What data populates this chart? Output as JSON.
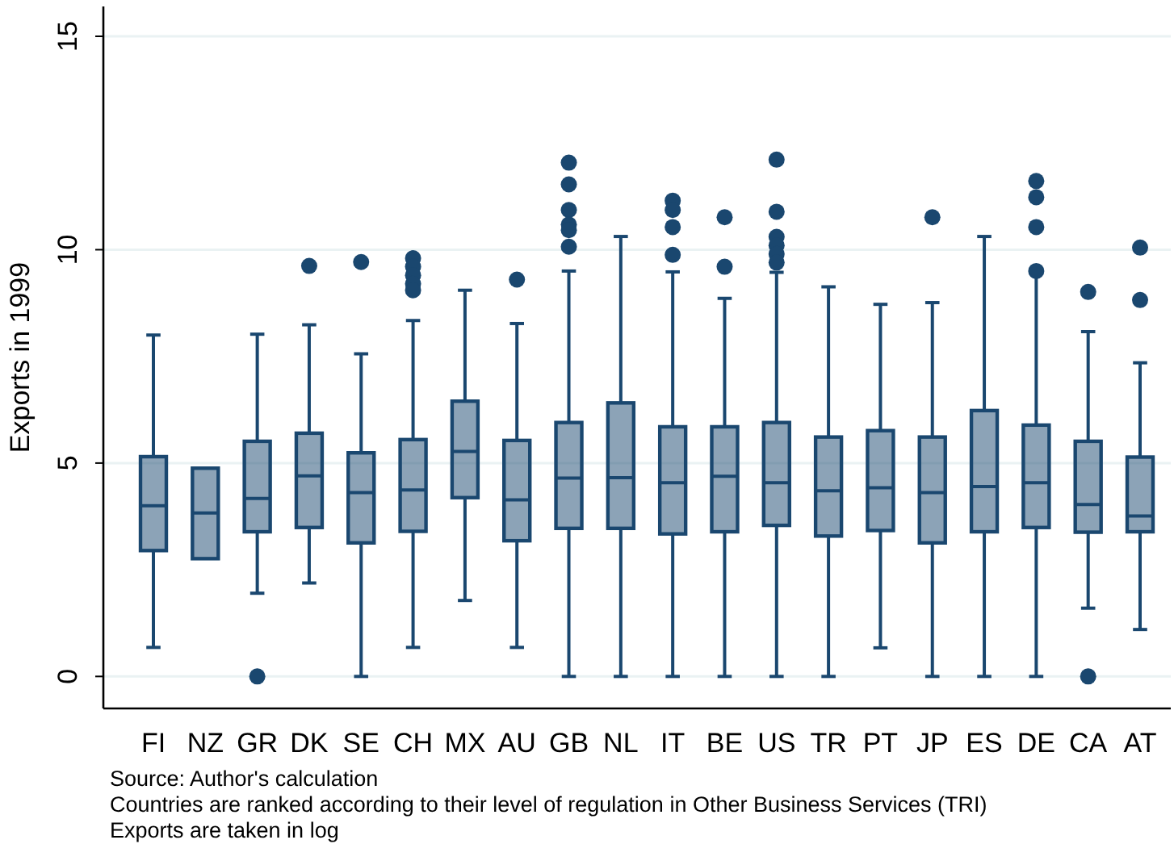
{
  "chart_data": {
    "type": "box",
    "ylabel": "Exports in 1999",
    "color": "#1a476f",
    "categories": [
      "FI",
      "NZ",
      "GR",
      "DK",
      "SE",
      "CH",
      "MX",
      "AU",
      "GB",
      "NL",
      "IT",
      "BE",
      "US",
      "TR",
      "PT",
      "JP",
      "ES",
      "DE",
      "CA",
      "AT"
    ],
    "boxes": [
      {
        "low": 0.68,
        "q1": 2.95,
        "median": 4.0,
        "q3": 5.15,
        "high": 8.0
      },
      {
        "low": 2.76,
        "q1": 2.76,
        "median": 3.83,
        "q3": 4.88,
        "high": 4.88
      },
      {
        "low": 1.95,
        "q1": 3.39,
        "median": 4.17,
        "q3": 5.51,
        "high": 8.02,
        "outliers": [
          0
        ]
      },
      {
        "low": 2.19,
        "q1": 3.49,
        "median": 4.7,
        "q3": 5.7,
        "high": 8.24,
        "outliers": [
          9.62
        ]
      },
      {
        "low": 0,
        "q1": 3.13,
        "median": 4.31,
        "q3": 5.24,
        "high": 7.56,
        "outliers": [
          9.71
        ]
      },
      {
        "low": 0.68,
        "q1": 3.4,
        "median": 4.37,
        "q3": 5.55,
        "high": 8.34,
        "outliers": [
          9.8,
          9.6,
          9.4,
          9.2,
          9.05
        ]
      },
      {
        "low": 1.78,
        "q1": 4.19,
        "median": 5.27,
        "q3": 6.45,
        "high": 9.05
      },
      {
        "low": 0.68,
        "q1": 3.18,
        "median": 4.14,
        "q3": 5.53,
        "high": 8.27,
        "outliers": [
          9.3
        ]
      },
      {
        "low": 0,
        "q1": 3.47,
        "median": 4.65,
        "q3": 5.95,
        "high": 9.5,
        "outliers": [
          12.04,
          11.53,
          10.93,
          10.59,
          10.46,
          10.07
        ]
      },
      {
        "low": 0,
        "q1": 3.47,
        "median": 4.66,
        "q3": 6.41,
        "high": 10.31
      },
      {
        "low": 0,
        "q1": 3.34,
        "median": 4.54,
        "q3": 5.85,
        "high": 9.48,
        "outliers": [
          11.15,
          10.93,
          10.53,
          9.88
        ]
      },
      {
        "low": 0,
        "q1": 3.39,
        "median": 4.69,
        "q3": 5.85,
        "high": 8.86,
        "outliers": [
          10.76,
          9.6
        ]
      },
      {
        "low": 0,
        "q1": 3.54,
        "median": 4.54,
        "q3": 5.95,
        "high": 9.47,
        "outliers": [
          12.11,
          10.89,
          10.3,
          10.1,
          9.9,
          9.7
        ]
      },
      {
        "low": 0,
        "q1": 3.29,
        "median": 4.35,
        "q3": 5.61,
        "high": 9.13
      },
      {
        "low": 0.67,
        "q1": 3.42,
        "median": 4.42,
        "q3": 5.76,
        "high": 8.72
      },
      {
        "low": 0,
        "q1": 3.13,
        "median": 4.31,
        "q3": 5.61,
        "high": 8.76,
        "outliers": [
          10.76
        ]
      },
      {
        "low": 0,
        "q1": 3.39,
        "median": 4.45,
        "q3": 6.23,
        "high": 10.31
      },
      {
        "low": 0,
        "q1": 3.49,
        "median": 4.54,
        "q3": 5.89,
        "high": 9.49,
        "outliers": [
          11.61,
          11.23,
          10.53,
          9.5
        ]
      },
      {
        "low": 1.6,
        "q1": 3.38,
        "median": 4.03,
        "q3": 5.51,
        "high": 8.08,
        "outliers": [
          9.01,
          0
        ]
      },
      {
        "low": 1.1,
        "q1": 3.39,
        "median": 3.76,
        "q3": 5.14,
        "high": 7.35,
        "outliers": [
          10.05,
          8.82
        ]
      }
    ],
    "ylim": [
      -0.75,
      15.7
    ],
    "yticks": [
      0,
      5,
      10,
      15
    ],
    "grid": "y",
    "annotations": [
      "Source: Author's calculation",
      "Countries are ranked according to their level of regulation in Other Business Services (TRI)",
      "Exports are taken in log"
    ]
  }
}
